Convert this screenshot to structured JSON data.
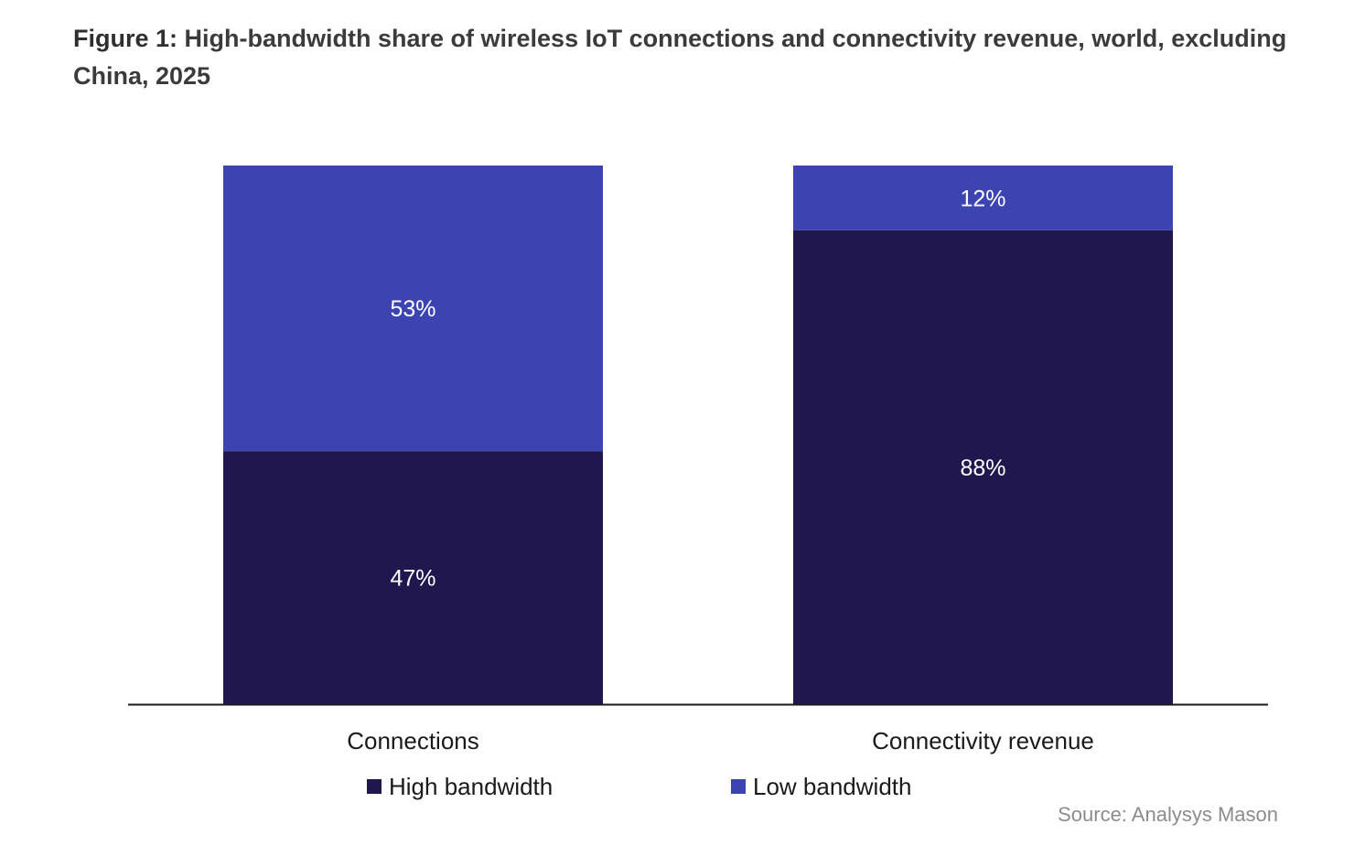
{
  "figure": {
    "label": "Figure 1:",
    "title": "High-bandwidth share of wireless IoT connections and connectivity revenue, world, excluding China, 2025"
  },
  "chart_data": {
    "type": "bar",
    "stacked": true,
    "categories": [
      "Connections",
      "Connectivity revenue"
    ],
    "series": [
      {
        "name": "High bandwidth",
        "values": [
          47,
          88
        ],
        "labels": [
          "47%",
          "88%"
        ],
        "color": "#21174f"
      },
      {
        "name": "Low bandwidth",
        "values": [
          53,
          12
        ],
        "labels": [
          "53%",
          "12%"
        ],
        "color": "#3c44b2"
      }
    ],
    "ylim": [
      0,
      100
    ],
    "unit": "%",
    "grid": false,
    "legend_position": "bottom-center",
    "title": "",
    "xlabel": "",
    "ylabel": ""
  },
  "source": "Source: Analysys Mason"
}
